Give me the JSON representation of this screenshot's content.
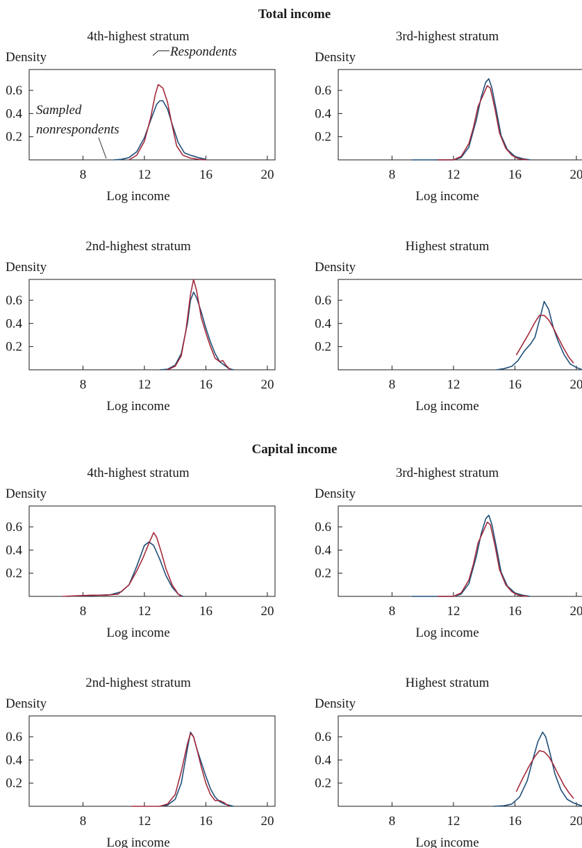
{
  "colors": {
    "respondents": "#a3293a",
    "sampled_nonrespondents": "#1f4e79"
  },
  "chart_data": [
    {
      "type": "line",
      "section": "Total income",
      "title": "4th-highest stratum",
      "xlabel": "Log income",
      "ylabel": "Density",
      "xlim": [
        4.5,
        20.5
      ],
      "ylim": [
        0,
        0.78
      ],
      "xticks": [
        8,
        12,
        16,
        20
      ],
      "yticks": [
        0.2,
        0.4,
        0.6
      ],
      "annotations": [
        {
          "text": "Respondents",
          "series": "Respondents"
        },
        {
          "text": "Sampled",
          "series": "Sampled nonrespondents"
        },
        {
          "text": "nonrespondents",
          "series": "Sampled nonrespondents"
        }
      ],
      "series": [
        {
          "name": "Sampled nonrespondents",
          "x": [
            10.0,
            10.5,
            11.0,
            11.5,
            12.0,
            12.4,
            12.8,
            13.0,
            13.2,
            13.5,
            13.8,
            14.2,
            14.6,
            15.0,
            15.5,
            16.0
          ],
          "y": [
            0.0,
            0.005,
            0.02,
            0.07,
            0.19,
            0.34,
            0.48,
            0.51,
            0.51,
            0.44,
            0.31,
            0.15,
            0.06,
            0.04,
            0.02,
            0.005
          ]
        },
        {
          "name": "Respondents",
          "x": [
            11.0,
            11.5,
            12.0,
            12.4,
            12.7,
            12.9,
            13.0,
            13.2,
            13.5,
            13.8,
            14.1,
            14.5,
            15.0,
            15.5,
            16.0
          ],
          "y": [
            0.0,
            0.04,
            0.16,
            0.36,
            0.56,
            0.65,
            0.64,
            0.62,
            0.5,
            0.3,
            0.12,
            0.04,
            0.015,
            0.005,
            0.0
          ]
        }
      ]
    },
    {
      "type": "line",
      "section": "Total income",
      "title": "3rd-highest stratum",
      "xlabel": "Log income",
      "ylabel": "Density",
      "xlim": [
        4.5,
        20.5
      ],
      "ylim": [
        0,
        0.78
      ],
      "xticks": [
        8,
        12,
        16,
        20
      ],
      "yticks": [
        0.2,
        0.4,
        0.6
      ],
      "series": [
        {
          "name": "Sampled nonrespondents",
          "x": [
            9.3,
            10.5,
            11.5,
            12.0,
            12.5,
            13.0,
            13.5,
            13.8,
            14.1,
            14.3,
            14.5,
            14.8,
            15.1,
            15.5,
            16.0,
            16.5,
            17.0
          ],
          "y": [
            0.0,
            0.0,
            0.0,
            0.0,
            0.02,
            0.11,
            0.35,
            0.54,
            0.67,
            0.7,
            0.62,
            0.42,
            0.21,
            0.09,
            0.03,
            0.01,
            0.0
          ]
        },
        {
          "name": "Respondents",
          "x": [
            11.0,
            12.0,
            12.5,
            13.0,
            13.3,
            13.6,
            13.9,
            14.2,
            14.4,
            14.7,
            15.0,
            15.4,
            15.8,
            16.2,
            16.8
          ],
          "y": [
            0.0,
            0.0,
            0.03,
            0.14,
            0.28,
            0.46,
            0.55,
            0.64,
            0.62,
            0.44,
            0.23,
            0.1,
            0.04,
            0.01,
            0.0
          ]
        }
      ]
    },
    {
      "type": "line",
      "section": "Total income",
      "title": "2nd-highest stratum",
      "xlabel": "Log income",
      "ylabel": "Density",
      "xlim": [
        4.5,
        20.5
      ],
      "ylim": [
        0,
        0.78
      ],
      "xticks": [
        8,
        12,
        16,
        20
      ],
      "yticks": [
        0.2,
        0.4,
        0.6
      ],
      "series": [
        {
          "name": "Sampled nonrespondents",
          "x": [
            13.0,
            13.5,
            14.0,
            14.4,
            14.8,
            15.0,
            15.2,
            15.4,
            15.7,
            16.0,
            16.3,
            16.6,
            16.9,
            17.2,
            17.5,
            17.8
          ],
          "y": [
            0.0,
            0.005,
            0.04,
            0.14,
            0.4,
            0.6,
            0.67,
            0.62,
            0.5,
            0.36,
            0.24,
            0.14,
            0.07,
            0.04,
            0.01,
            0.0
          ]
        },
        {
          "name": "Respondents",
          "x": [
            13.5,
            14.0,
            14.4,
            14.7,
            15.0,
            15.2,
            15.4,
            15.7,
            16.0,
            16.3,
            16.6,
            16.9,
            17.1,
            17.3,
            17.6
          ],
          "y": [
            0.0,
            0.03,
            0.12,
            0.34,
            0.65,
            0.78,
            0.68,
            0.45,
            0.32,
            0.2,
            0.1,
            0.07,
            0.08,
            0.04,
            0.0
          ]
        }
      ]
    },
    {
      "type": "line",
      "section": "Total income",
      "title": "Highest stratum",
      "xlabel": "Log income",
      "ylabel": "Density",
      "xlim": [
        4.5,
        20.5
      ],
      "ylim": [
        0,
        0.78
      ],
      "xticks": [
        8,
        12,
        16,
        20
      ],
      "yticks": [
        0.2,
        0.4,
        0.6
      ],
      "series": [
        {
          "name": "Sampled nonrespondents",
          "x": [
            14.8,
            15.3,
            15.8,
            16.2,
            16.6,
            17.0,
            17.3,
            17.6,
            17.9,
            18.2,
            18.5,
            18.8,
            19.2,
            19.6,
            20.0,
            20.4
          ],
          "y": [
            0.0,
            0.01,
            0.03,
            0.08,
            0.16,
            0.22,
            0.28,
            0.43,
            0.59,
            0.52,
            0.36,
            0.25,
            0.13,
            0.05,
            0.02,
            0.0
          ]
        },
        {
          "name": "Respondents",
          "x": [
            16.1,
            16.5,
            16.9,
            17.3,
            17.6,
            17.9,
            18.2,
            18.5,
            18.8,
            19.2,
            19.5,
            19.8
          ],
          "y": [
            0.13,
            0.22,
            0.31,
            0.41,
            0.47,
            0.47,
            0.43,
            0.36,
            0.28,
            0.18,
            0.11,
            0.06
          ]
        }
      ]
    },
    {
      "type": "line",
      "section": "Capital income",
      "title": "4th-highest stratum",
      "xlabel": "Log income",
      "ylabel": "Density",
      "xlim": [
        4.5,
        20.5
      ],
      "ylim": [
        0,
        0.78
      ],
      "xticks": [
        8,
        12,
        16,
        20
      ],
      "yticks": [
        0.2,
        0.4,
        0.6
      ],
      "series": [
        {
          "name": "Sampled nonrespondents",
          "x": [
            7.0,
            8.0,
            9.0,
            9.8,
            10.5,
            11.0,
            11.5,
            12.0,
            12.3,
            12.6,
            13.0,
            13.4,
            13.8,
            14.2,
            14.5
          ],
          "y": [
            0.0,
            0.005,
            0.01,
            0.015,
            0.04,
            0.1,
            0.26,
            0.44,
            0.47,
            0.44,
            0.32,
            0.18,
            0.08,
            0.02,
            0.0
          ]
        },
        {
          "name": "Respondents",
          "x": [
            6.7,
            7.5,
            8.5,
            9.5,
            10.3,
            11.0,
            11.5,
            11.9,
            12.3,
            12.6,
            12.8,
            13.1,
            13.4,
            13.8,
            14.2,
            14.4
          ],
          "y": [
            0.0,
            0.005,
            0.01,
            0.01,
            0.02,
            0.1,
            0.22,
            0.33,
            0.46,
            0.55,
            0.51,
            0.38,
            0.24,
            0.1,
            0.02,
            0.0
          ]
        }
      ]
    },
    {
      "type": "line",
      "section": "Capital income",
      "title": "3rd-highest stratum",
      "xlabel": "Log income",
      "ylabel": "Density",
      "xlim": [
        4.5,
        20.5
      ],
      "ylim": [
        0,
        0.78
      ],
      "xticks": [
        8,
        12,
        16,
        20
      ],
      "yticks": [
        0.2,
        0.4,
        0.6
      ],
      "series": [
        {
          "name": "Sampled nonrespondents",
          "x": [
            9.3,
            10.5,
            11.5,
            12.0,
            12.5,
            13.0,
            13.5,
            13.8,
            14.1,
            14.3,
            14.5,
            14.8,
            15.1,
            15.5,
            16.0,
            16.5,
            17.0
          ],
          "y": [
            0.0,
            0.0,
            0.0,
            0.0,
            0.02,
            0.11,
            0.35,
            0.54,
            0.67,
            0.7,
            0.62,
            0.42,
            0.21,
            0.09,
            0.03,
            0.01,
            0.0
          ]
        },
        {
          "name": "Respondents",
          "x": [
            11.0,
            12.0,
            12.5,
            13.0,
            13.3,
            13.6,
            13.9,
            14.2,
            14.4,
            14.7,
            15.0,
            15.4,
            15.8,
            16.2,
            16.8
          ],
          "y": [
            0.0,
            0.0,
            0.03,
            0.14,
            0.28,
            0.46,
            0.55,
            0.64,
            0.62,
            0.44,
            0.23,
            0.1,
            0.04,
            0.01,
            0.0
          ]
        }
      ]
    },
    {
      "type": "line",
      "section": "Capital income",
      "title": "2nd-highest stratum",
      "xlabel": "Log income",
      "ylabel": "Density",
      "xlim": [
        4.5,
        20.5
      ],
      "ylim": [
        0,
        0.78
      ],
      "xticks": [
        8,
        12,
        16,
        20
      ],
      "yticks": [
        0.2,
        0.4,
        0.6
      ],
      "series": [
        {
          "name": "Sampled nonrespondents",
          "x": [
            13.0,
            13.5,
            14.0,
            14.4,
            14.8,
            15.0,
            15.2,
            15.4,
            15.7,
            16.0,
            16.3,
            16.6,
            16.9,
            17.2,
            17.5,
            17.8
          ],
          "y": [
            0.0,
            0.01,
            0.06,
            0.2,
            0.5,
            0.64,
            0.6,
            0.5,
            0.38,
            0.26,
            0.15,
            0.08,
            0.04,
            0.02,
            0.01,
            0.0
          ]
        },
        {
          "name": "Respondents",
          "x": [
            11.2,
            12.0,
            13.0,
            13.5,
            14.0,
            14.4,
            14.8,
            15.0,
            15.2,
            15.4,
            15.7,
            16.0,
            16.3,
            16.6,
            16.9,
            17.2,
            17.5
          ],
          "y": [
            0.0,
            0.0,
            0.0,
            0.02,
            0.1,
            0.3,
            0.54,
            0.63,
            0.6,
            0.5,
            0.34,
            0.2,
            0.1,
            0.05,
            0.05,
            0.03,
            0.0
          ]
        }
      ]
    },
    {
      "type": "line",
      "section": "Capital income",
      "title": "Highest stratum",
      "xlabel": "Log income",
      "ylabel": "Density",
      "xlim": [
        4.5,
        20.5
      ],
      "ylim": [
        0,
        0.78
      ],
      "xticks": [
        8,
        12,
        16,
        20
      ],
      "yticks": [
        0.2,
        0.4,
        0.6
      ],
      "series": [
        {
          "name": "Sampled nonrespondents",
          "x": [
            14.6,
            15.3,
            15.8,
            16.3,
            16.8,
            17.2,
            17.5,
            17.8,
            18.0,
            18.3,
            18.6,
            19.0,
            19.4,
            19.8,
            20.2,
            20.5
          ],
          "y": [
            0.0,
            0.005,
            0.02,
            0.08,
            0.22,
            0.42,
            0.56,
            0.64,
            0.6,
            0.45,
            0.28,
            0.14,
            0.06,
            0.03,
            0.01,
            0.0
          ]
        },
        {
          "name": "Respondents",
          "x": [
            16.1,
            16.5,
            16.9,
            17.3,
            17.6,
            17.9,
            18.2,
            18.5,
            18.8,
            19.2,
            19.5,
            19.8
          ],
          "y": [
            0.13,
            0.24,
            0.34,
            0.43,
            0.48,
            0.47,
            0.43,
            0.36,
            0.28,
            0.18,
            0.12,
            0.07
          ]
        }
      ]
    }
  ]
}
